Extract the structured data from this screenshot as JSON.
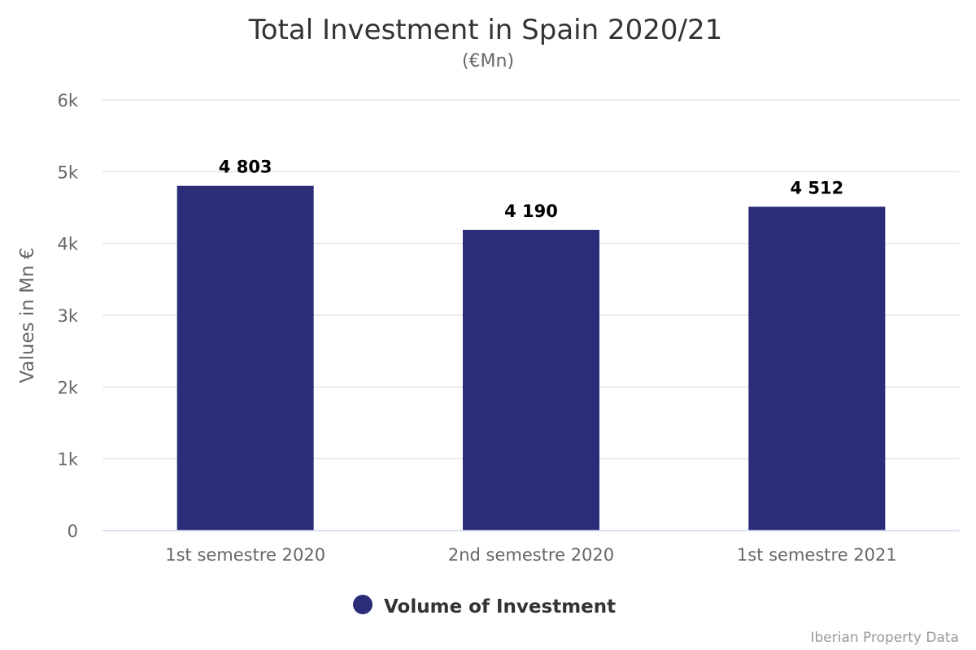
{
  "chart_data": {
    "type": "bar",
    "title": "Total Investment in Spain 2020/21",
    "subtitle": "(€Mn)",
    "xlabel": "",
    "ylabel": "Values in Mn €",
    "categories": [
      "1st semestre 2020",
      "2nd semestre 2020",
      "1st semestre 2021"
    ],
    "series": [
      {
        "name": "Volume of Investment",
        "values": [
          4803,
          4190,
          4512
        ],
        "data_labels": [
          "4 803",
          "4 190",
          "4 512"
        ],
        "color": "#2b2d79"
      }
    ],
    "ylim": [
      0,
      6000
    ],
    "yticks": [
      0,
      1000,
      2000,
      3000,
      4000,
      5000,
      6000
    ],
    "ytick_labels": [
      "0",
      "1k",
      "2k",
      "3k",
      "4k",
      "5k",
      "6k"
    ],
    "grid": true,
    "legend_position": "bottom-center",
    "credit": "Iberian Property Data"
  }
}
